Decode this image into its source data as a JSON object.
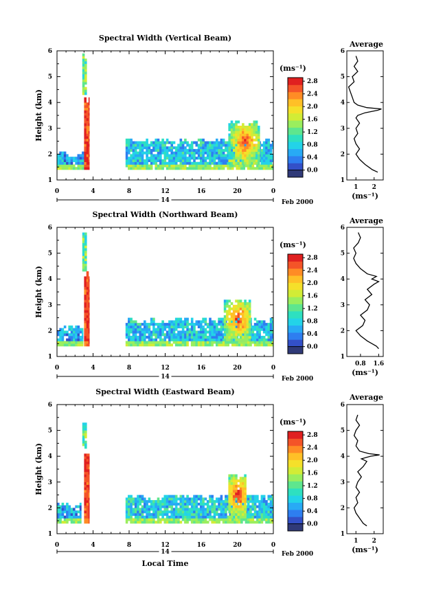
{
  "figure": {
    "shared": {
      "ylabel": "Height (km)",
      "xlabel": "Local Time",
      "date_label": "Feb 2000",
      "day_label": "14",
      "x_ticks": [
        "0",
        "4",
        "8",
        "12",
        "16",
        "20",
        "0"
      ],
      "y_ticks": [
        "1",
        "2",
        "3",
        "4",
        "5",
        "6"
      ],
      "colorbar_unit_label": "(ms⁻¹)",
      "avg_unit_label": "(ms⁻¹)",
      "avg_title": "Average"
    },
    "colors": {
      "colormap": [
        "#303a78",
        "#3350c8",
        "#2e7ef0",
        "#28aaf5",
        "#23d3e8",
        "#2ee0c0",
        "#5ee68e",
        "#9aee5e",
        "#d2ec36",
        "#f5e02a",
        "#ffc027",
        "#ff8c25",
        "#f45428",
        "#e02020"
      ]
    }
  },
  "chart_data": [
    {
      "type": "heatmap",
      "title": "Spectral Width (Vertical Beam)",
      "xlabel": "Local Time",
      "ylabel": "Height (km)",
      "xlim": [
        0,
        24
      ],
      "ylim": [
        1,
        6
      ],
      "colorbar": {
        "label": "(ms⁻¹)",
        "range": [
          0,
          3.0
        ],
        "ticks": [
          "0.0",
          "0.4",
          "0.8",
          "1.2",
          "1.6",
          "2.0",
          "2.4",
          "2.8"
        ]
      },
      "data_regions": [
        {
          "t_start": 0.0,
          "t_end": 3.0,
          "h_base": 1.4,
          "h_top": 2.1,
          "mean_width": 0.8
        },
        {
          "t_start": 2.8,
          "t_end": 3.3,
          "h_base": 4.3,
          "h_top": 5.9,
          "mean_width": 1.4
        },
        {
          "t_start": 3.0,
          "t_end": 3.6,
          "h_base": 1.4,
          "h_top": 4.2,
          "mean_width": 2.8
        },
        {
          "t_start": 7.6,
          "t_end": 24.0,
          "h_base": 1.4,
          "h_top": 2.6,
          "mean_width": 0.9
        },
        {
          "t_start": 19.0,
          "t_end": 22.5,
          "h_base": 1.6,
          "h_top": 3.3,
          "mean_width": 1.4
        }
      ],
      "average_profile": {
        "xlabel": "(ms⁻¹)",
        "x_ticks": [
          "1",
          "2"
        ],
        "xlim": [
          0.5,
          2.5
        ],
        "height_km": [
          1.3,
          1.4,
          1.5,
          1.6,
          1.8,
          2.0,
          2.2,
          2.4,
          2.6,
          2.8,
          3.0,
          3.2,
          3.4,
          3.5,
          3.6,
          3.7,
          3.75,
          3.8,
          3.9,
          4.0,
          4.2,
          4.4,
          4.6,
          4.8,
          5.0,
          5.2,
          5.4,
          5.6,
          5.8
        ],
        "width": [
          2.2,
          1.9,
          1.7,
          1.5,
          1.2,
          1.0,
          1.2,
          1.0,
          0.9,
          1.1,
          1.0,
          1.2,
          1.0,
          1.1,
          1.5,
          2.2,
          2.4,
          1.6,
          1.1,
          0.9,
          0.8,
          0.7,
          0.6,
          0.9,
          0.8,
          1.1,
          0.9,
          1.1,
          1.0
        ]
      }
    },
    {
      "type": "heatmap",
      "title": "Spectral Width (Northward Beam)",
      "xlabel": "Local Time",
      "ylabel": "Height (km)",
      "xlim": [
        0,
        24
      ],
      "ylim": [
        1,
        6
      ],
      "colorbar": {
        "label": "(ms⁻¹)",
        "range": [
          0,
          3.0
        ],
        "ticks": [
          "0.0",
          "0.4",
          "0.8",
          "1.2",
          "1.6",
          "2.0",
          "2.4",
          "2.8"
        ]
      },
      "data_regions": [
        {
          "t_start": 0.0,
          "t_end": 2.9,
          "h_base": 1.4,
          "h_top": 2.2,
          "mean_width": 0.8
        },
        {
          "t_start": 2.8,
          "t_end": 3.3,
          "h_base": 4.3,
          "h_top": 5.8,
          "mean_width": 1.4
        },
        {
          "t_start": 3.0,
          "t_end": 3.6,
          "h_base": 1.4,
          "h_top": 4.3,
          "mean_width": 2.8
        },
        {
          "t_start": 7.6,
          "t_end": 24.0,
          "h_base": 1.4,
          "h_top": 2.5,
          "mean_width": 0.9
        },
        {
          "t_start": 18.5,
          "t_end": 21.5,
          "h_base": 1.6,
          "h_top": 3.2,
          "mean_width": 1.7
        }
      ],
      "average_profile": {
        "xlabel": "(ms⁻¹)",
        "x_ticks": [
          "0.8",
          "1.6"
        ],
        "xlim": [
          0.2,
          1.8
        ],
        "height_km": [
          1.3,
          1.4,
          1.5,
          1.6,
          1.8,
          2.0,
          2.2,
          2.4,
          2.6,
          2.8,
          3.0,
          3.2,
          3.4,
          3.6,
          3.8,
          3.9,
          4.0,
          4.1,
          4.2,
          4.4,
          4.6,
          4.8,
          5.0,
          5.2,
          5.4,
          5.6,
          5.8
        ],
        "width": [
          1.6,
          1.5,
          1.3,
          1.1,
          0.8,
          0.6,
          0.9,
          1.0,
          0.8,
          1.1,
          1.2,
          1.0,
          1.3,
          1.1,
          1.4,
          1.6,
          1.3,
          1.5,
          1.1,
          0.8,
          0.6,
          0.5,
          0.6,
          0.5,
          0.7,
          0.8,
          0.7
        ]
      }
    },
    {
      "type": "heatmap",
      "title": "Spectral Width (Eastward Beam)",
      "xlabel": "Local Time",
      "ylabel": "Height (km)",
      "xlim": [
        0,
        24
      ],
      "ylim": [
        1,
        6
      ],
      "colorbar": {
        "label": "(ms⁻¹)",
        "range": [
          0,
          3.0
        ],
        "ticks": [
          "0.0",
          "0.4",
          "0.8",
          "1.2",
          "1.6",
          "2.0",
          "2.4",
          "2.8"
        ]
      },
      "data_regions": [
        {
          "t_start": 0.0,
          "t_end": 2.7,
          "h_base": 1.4,
          "h_top": 2.2,
          "mean_width": 0.8
        },
        {
          "t_start": 2.8,
          "t_end": 3.3,
          "h_base": 4.3,
          "h_top": 5.5,
          "mean_width": 1.4
        },
        {
          "t_start": 3.0,
          "t_end": 3.6,
          "h_base": 1.4,
          "h_top": 4.2,
          "mean_width": 2.8
        },
        {
          "t_start": 7.6,
          "t_end": 24.0,
          "h_base": 1.4,
          "h_top": 2.5,
          "mean_width": 1.0
        },
        {
          "t_start": 19.0,
          "t_end": 21.0,
          "h_base": 1.6,
          "h_top": 3.3,
          "mean_width": 1.7
        }
      ],
      "average_profile": {
        "xlabel": "(ms⁻¹)",
        "x_ticks": [
          "1",
          "2"
        ],
        "xlim": [
          0.5,
          2.5
        ],
        "height_km": [
          1.3,
          1.4,
          1.6,
          1.8,
          2.0,
          2.2,
          2.4,
          2.6,
          2.8,
          3.0,
          3.2,
          3.4,
          3.6,
          3.8,
          3.9,
          4.0,
          4.05,
          4.1,
          4.2,
          4.4,
          4.6,
          4.8,
          5.0,
          5.2,
          5.4,
          5.6
        ],
        "width": [
          1.6,
          1.4,
          1.2,
          1.0,
          0.9,
          1.1,
          1.0,
          1.2,
          1.0,
          1.1,
          1.3,
          1.1,
          1.4,
          1.6,
          1.3,
          1.8,
          2.3,
          1.7,
          1.2,
          1.0,
          1.1,
          0.9,
          1.0,
          1.2,
          1.0,
          1.1
        ]
      }
    }
  ]
}
